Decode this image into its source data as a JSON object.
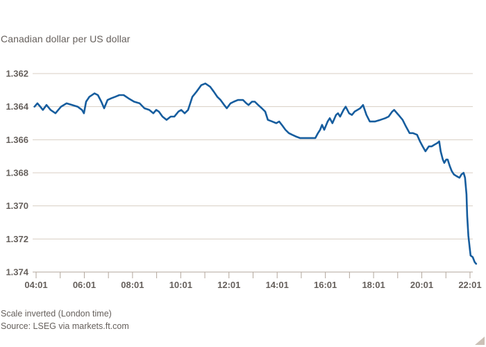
{
  "chart_data": {
    "type": "line",
    "title": "Canadian dollar per US dollar",
    "footnote": "Scale inverted (London time)",
    "source": "Source: LSEG via markets.ft.com",
    "legend": "none",
    "grid": "horizontal",
    "colors": {
      "line": "#165D9E",
      "grid": "#d8cec3",
      "axis": "#b2a69b",
      "text": "#66605c",
      "resize_triangle": "#ccc1b7"
    },
    "y_axis": {
      "label": "",
      "inverted": true,
      "range": [
        1.362,
        1.374
      ],
      "tick_values": [
        1.362,
        1.364,
        1.366,
        1.368,
        1.37,
        1.372,
        1.374
      ],
      "tick_labels": [
        "1.362",
        "1.364",
        "1.366",
        "1.368",
        "1.370",
        "1.372",
        "1.374"
      ]
    },
    "x_axis": {
      "label": "",
      "unit": "time (London), decimal hours",
      "range": [
        3.9,
        22.35
      ],
      "tick_values": [
        4.0167,
        6.0167,
        8.0167,
        10.0167,
        12.0167,
        14.0167,
        16.0167,
        18.0167,
        20.0167,
        22.0167
      ],
      "tick_labels": [
        "04:01",
        "06:01",
        "08:01",
        "10:01",
        "12:01",
        "14:01",
        "16:01",
        "18:01",
        "20:01",
        "22:01"
      ],
      "minor_tick_values": [
        5.0167,
        7.0167,
        9.0167,
        11.0167,
        13.0167,
        15.0167,
        17.0167,
        19.0167,
        21.0167
      ]
    },
    "series": [
      {
        "name": "Canadian dollar per US dollar",
        "points": [
          [
            3.95,
            1.364
          ],
          [
            4.07,
            1.3638
          ],
          [
            4.19,
            1.364
          ],
          [
            4.3,
            1.3642
          ],
          [
            4.45,
            1.3639
          ],
          [
            4.62,
            1.3642
          ],
          [
            4.82,
            1.3644
          ],
          [
            5.05,
            1.364
          ],
          [
            5.28,
            1.3638
          ],
          [
            5.51,
            1.3639
          ],
          [
            5.74,
            1.364
          ],
          [
            5.92,
            1.3642
          ],
          [
            6.0,
            1.3644
          ],
          [
            6.09,
            1.3637
          ],
          [
            6.23,
            1.3634
          ],
          [
            6.44,
            1.3632
          ],
          [
            6.58,
            1.3633
          ],
          [
            6.72,
            1.3637
          ],
          [
            6.84,
            1.3641
          ],
          [
            6.98,
            1.3636
          ],
          [
            7.13,
            1.3635
          ],
          [
            7.3,
            1.3634
          ],
          [
            7.47,
            1.3633
          ],
          [
            7.65,
            1.3633
          ],
          [
            7.85,
            1.3635
          ],
          [
            8.08,
            1.3637
          ],
          [
            8.31,
            1.3638
          ],
          [
            8.51,
            1.3641
          ],
          [
            8.71,
            1.3642
          ],
          [
            8.88,
            1.3644
          ],
          [
            9.0,
            1.3642
          ],
          [
            9.11,
            1.3643
          ],
          [
            9.26,
            1.3646
          ],
          [
            9.43,
            1.3648
          ],
          [
            9.6,
            1.3646
          ],
          [
            9.75,
            1.3646
          ],
          [
            9.92,
            1.3643
          ],
          [
            10.04,
            1.3642
          ],
          [
            10.18,
            1.3644
          ],
          [
            10.32,
            1.3642
          ],
          [
            10.5,
            1.3634
          ],
          [
            10.67,
            1.3631
          ],
          [
            10.87,
            1.3627
          ],
          [
            11.04,
            1.3626
          ],
          [
            11.24,
            1.3628
          ],
          [
            11.39,
            1.3631
          ],
          [
            11.53,
            1.3634
          ],
          [
            11.67,
            1.3636
          ],
          [
            11.82,
            1.3639
          ],
          [
            11.93,
            1.3641
          ],
          [
            12.08,
            1.3638
          ],
          [
            12.22,
            1.3637
          ],
          [
            12.39,
            1.3636
          ],
          [
            12.6,
            1.3636
          ],
          [
            12.74,
            1.3638
          ],
          [
            12.83,
            1.3639
          ],
          [
            12.97,
            1.3637
          ],
          [
            13.09,
            1.3637
          ],
          [
            13.23,
            1.3639
          ],
          [
            13.38,
            1.3641
          ],
          [
            13.52,
            1.3643
          ],
          [
            13.63,
            1.3648
          ],
          [
            13.81,
            1.3649
          ],
          [
            13.98,
            1.365
          ],
          [
            14.1,
            1.3649
          ],
          [
            14.21,
            1.3651
          ],
          [
            14.36,
            1.3654
          ],
          [
            14.5,
            1.3656
          ],
          [
            14.64,
            1.3657
          ],
          [
            14.79,
            1.3658
          ],
          [
            14.96,
            1.3659
          ],
          [
            15.19,
            1.3659
          ],
          [
            15.42,
            1.3659
          ],
          [
            15.6,
            1.3659
          ],
          [
            15.71,
            1.3656
          ],
          [
            15.8,
            1.3654
          ],
          [
            15.88,
            1.3651
          ],
          [
            15.97,
            1.3654
          ],
          [
            16.11,
            1.3649
          ],
          [
            16.2,
            1.3647
          ],
          [
            16.31,
            1.365
          ],
          [
            16.46,
            1.3645
          ],
          [
            16.54,
            1.3644
          ],
          [
            16.63,
            1.3646
          ],
          [
            16.77,
            1.3642
          ],
          [
            16.86,
            1.364
          ],
          [
            17.0,
            1.3644
          ],
          [
            17.12,
            1.3645
          ],
          [
            17.23,
            1.3643
          ],
          [
            17.35,
            1.3642
          ],
          [
            17.46,
            1.3641
          ],
          [
            17.58,
            1.3639
          ],
          [
            17.72,
            1.3645
          ],
          [
            17.86,
            1.3649
          ],
          [
            18.07,
            1.3649
          ],
          [
            18.3,
            1.3648
          ],
          [
            18.5,
            1.3647
          ],
          [
            18.64,
            1.3646
          ],
          [
            18.79,
            1.3643
          ],
          [
            18.87,
            1.3642
          ],
          [
            19.05,
            1.3645
          ],
          [
            19.22,
            1.3648
          ],
          [
            19.36,
            1.3652
          ],
          [
            19.51,
            1.3656
          ],
          [
            19.65,
            1.3656
          ],
          [
            19.82,
            1.3657
          ],
          [
            19.94,
            1.3661
          ],
          [
            20.05,
            1.3664
          ],
          [
            20.17,
            1.3667
          ],
          [
            20.31,
            1.3664
          ],
          [
            20.43,
            1.3664
          ],
          [
            20.54,
            1.3663
          ],
          [
            20.66,
            1.3662
          ],
          [
            20.74,
            1.3661
          ],
          [
            20.8,
            1.3667
          ],
          [
            20.89,
            1.3672
          ],
          [
            20.95,
            1.3674
          ],
          [
            21.03,
            1.3672
          ],
          [
            21.09,
            1.3672
          ],
          [
            21.18,
            1.3676
          ],
          [
            21.26,
            1.3679
          ],
          [
            21.35,
            1.3681
          ],
          [
            21.46,
            1.3682
          ],
          [
            21.58,
            1.3683
          ],
          [
            21.66,
            1.3681
          ],
          [
            21.75,
            1.368
          ],
          [
            21.81,
            1.3683
          ],
          [
            21.87,
            1.3693
          ],
          [
            21.9,
            1.3706
          ],
          [
            21.95,
            1.3718
          ],
          [
            22.01,
            1.3726
          ],
          [
            22.04,
            1.373
          ],
          [
            22.13,
            1.3731
          ],
          [
            22.21,
            1.3734
          ],
          [
            22.27,
            1.3735
          ]
        ]
      }
    ]
  }
}
